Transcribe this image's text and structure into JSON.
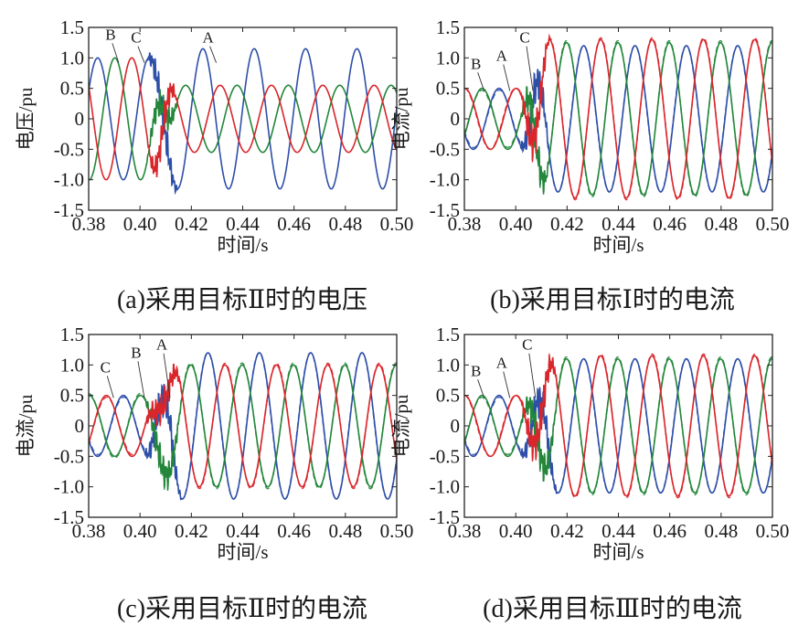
{
  "figure": {
    "series_colors": {
      "A": "#2e4fa8",
      "B": "#23863a",
      "C": "#d9262b"
    },
    "captions": [
      "(a)采用目标Ⅱ时的电压",
      "(b)采用目标Ⅰ时的电流",
      "(c)采用目标Ⅱ时的电流",
      "(d)采用目标Ⅲ时的电流"
    ]
  },
  "chart_data": [
    {
      "id": "a",
      "type": "line",
      "caption": "(a)采用目标Ⅱ时的电压",
      "xlabel": "时间/s",
      "ylabel": "电压/pu",
      "xlim": [
        0.38,
        0.5
      ],
      "ylim": [
        -1.5,
        1.5
      ],
      "xticks": [
        "0.38",
        "0.40",
        "0.42",
        "0.44",
        "0.46",
        "0.48",
        "0.50"
      ],
      "yticks": [
        "1.5",
        "1.0",
        "0.5",
        "0",
        "-0.5",
        "-1.0",
        "-1.5"
      ],
      "grid": false,
      "fault_window": [
        0.4025,
        0.415
      ],
      "series": [
        {
          "name": "A",
          "color": "#2e4fa8",
          "pre_amp": 1.0,
          "post_amp": 1.15,
          "pre_peak": 0.3835,
          "post_peak": 0.4245,
          "dashed_overlay": false
        },
        {
          "name": "B",
          "color": "#23863a",
          "pre_amp": 1.0,
          "post_amp": 0.55,
          "pre_peak": 0.3902,
          "post_peak": 0.4178,
          "dashed_overlay": false
        },
        {
          "name": "C",
          "color": "#d9262b",
          "pre_amp": 1.0,
          "post_amp": 0.55,
          "pre_peak": 0.3968,
          "post_peak": 0.4312,
          "dashed_overlay": false
        }
      ],
      "annotations": [
        {
          "text": "B",
          "x": 0.3885,
          "y": 1.3
        },
        {
          "text": "C",
          "x": 0.3985,
          "y": 1.25
        },
        {
          "text": "A",
          "x": 0.4265,
          "y": 1.25
        }
      ]
    },
    {
      "id": "b",
      "type": "line",
      "caption": "(b)采用目标Ⅰ时的电流",
      "xlabel": "时间/s",
      "ylabel": "电流/pu",
      "xlim": [
        0.38,
        0.5
      ],
      "ylim": [
        -1.5,
        1.5
      ],
      "xticks": [
        "0.38",
        "0.40",
        "0.42",
        "0.44",
        "0.46",
        "0.48",
        "0.50"
      ],
      "yticks": [
        "1.5",
        "1.0",
        "0.5",
        "0",
        "-0.5",
        "-1.0",
        "-1.5"
      ],
      "grid": false,
      "fault_window": [
        0.4015,
        0.4135
      ],
      "series": [
        {
          "name": "A",
          "color": "#2e4fa8",
          "pre_amp": 0.5,
          "post_amp": 1.2,
          "pre_peak": 0.3935,
          "post_peak": 0.4265,
          "dashed_overlay": true
        },
        {
          "name": "B",
          "color": "#23863a",
          "pre_amp": 0.5,
          "post_amp": 1.25,
          "pre_peak": 0.3869,
          "post_peak": 0.4198,
          "dashed_overlay": true
        },
        {
          "name": "C",
          "color": "#d9262b",
          "pre_amp": 0.5,
          "post_amp": 1.3,
          "pre_peak": 0.3802,
          "post_peak": 0.4131,
          "dashed_overlay": true
        }
      ],
      "annotations": [
        {
          "text": "B",
          "x": 0.3845,
          "y": 0.82
        },
        {
          "text": "A",
          "x": 0.3945,
          "y": 0.95
        },
        {
          "text": "C",
          "x": 0.4035,
          "y": 1.25
        }
      ]
    },
    {
      "id": "c",
      "type": "line",
      "caption": "(c)采用目标Ⅱ时的电流",
      "xlabel": "时间/s",
      "ylabel": "电流/pu",
      "xlim": [
        0.38,
        0.5
      ],
      "ylim": [
        -1.5,
        1.5
      ],
      "xticks": [
        "0.38",
        "0.40",
        "0.42",
        "0.44",
        "0.46",
        "0.48",
        "0.50"
      ],
      "yticks": [
        "1.5",
        "1.0",
        "0.5",
        "0",
        "-0.5",
        "-1.0",
        "-1.5"
      ],
      "grid": false,
      "fault_window": [
        0.4015,
        0.4165
      ],
      "series": [
        {
          "name": "A",
          "color": "#2e4fa8",
          "pre_amp": 0.5,
          "post_amp": 1.2,
          "pre_peak": 0.3935,
          "post_peak": 0.4265,
          "dashed_overlay": true
        },
        {
          "name": "B",
          "color": "#23863a",
          "pre_amp": 0.5,
          "post_amp": 1.0,
          "pre_peak": 0.3802,
          "post_peak": 0.4198,
          "dashed_overlay": true
        },
        {
          "name": "C",
          "color": "#d9262b",
          "pre_amp": 0.5,
          "post_amp": 1.0,
          "pre_peak": 0.3869,
          "post_peak": 0.4331,
          "dashed_overlay": true
        }
      ],
      "annotations": [
        {
          "text": "C",
          "x": 0.3865,
          "y": 0.88
        },
        {
          "text": "B",
          "x": 0.3985,
          "y": 1.12
        },
        {
          "text": "A",
          "x": 0.4085,
          "y": 1.25
        }
      ]
    },
    {
      "id": "d",
      "type": "line",
      "caption": "(d)采用目标Ⅲ时的电流",
      "xlabel": "时间/s",
      "ylabel": "电流/pu",
      "xlim": [
        0.38,
        0.5
      ],
      "ylim": [
        -1.5,
        1.5
      ],
      "xticks": [
        "0.38",
        "0.40",
        "0.42",
        "0.44",
        "0.46",
        "0.48",
        "0.50"
      ],
      "yticks": [
        "1.5",
        "1.0",
        "0.5",
        "0",
        "-0.5",
        "-1.0",
        "-1.5"
      ],
      "grid": false,
      "fault_window": [
        0.4015,
        0.4165
      ],
      "series": [
        {
          "name": "A",
          "color": "#2e4fa8",
          "pre_amp": 0.5,
          "post_amp": 1.1,
          "pre_peak": 0.3935,
          "post_peak": 0.4265,
          "dashed_overlay": true
        },
        {
          "name": "B",
          "color": "#23863a",
          "pre_amp": 0.5,
          "post_amp": 1.1,
          "pre_peak": 0.3869,
          "post_peak": 0.4198,
          "dashed_overlay": true
        },
        {
          "name": "C",
          "color": "#d9262b",
          "pre_amp": 0.5,
          "post_amp": 1.15,
          "pre_peak": 0.3802,
          "post_peak": 0.4331,
          "dashed_overlay": true
        }
      ],
      "annotations": [
        {
          "text": "B",
          "x": 0.3845,
          "y": 0.82
        },
        {
          "text": "A",
          "x": 0.3945,
          "y": 0.95
        },
        {
          "text": "C",
          "x": 0.4045,
          "y": 1.25
        }
      ]
    }
  ]
}
